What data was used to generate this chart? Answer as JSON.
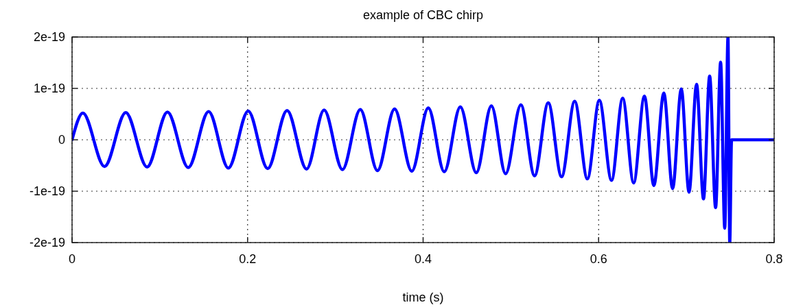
{
  "chart_data": {
    "type": "line",
    "title": "example of CBC chirp",
    "xlabel": "time (s)",
    "xlim": [
      0,
      0.8
    ],
    "xticks": [
      0,
      0.2,
      0.4,
      0.6,
      0.8
    ],
    "ylim": [
      -2e-19,
      2e-19
    ],
    "yticks": [
      {
        "value": -2e-19,
        "label": "-2e-19"
      },
      {
        "value": -1e-19,
        "label": "-1e-19"
      },
      {
        "value": 0,
        "label": "0"
      },
      {
        "value": 1e-19,
        "label": "1e-19"
      },
      {
        "value": 2e-19,
        "label": "2e-19"
      }
    ],
    "grid": true,
    "line_style": "solid",
    "series": [
      {
        "color": "#0000ff",
        "x": [
          0,
          0.0123,
          0.037,
          0.0612,
          0.0855,
          0.1087,
          0.1324,
          0.1556,
          0.1781,
          0.2007,
          0.2229,
          0.245,
          0.2672,
          0.2872,
          0.3081,
          0.3284,
          0.348,
          0.3675,
          0.3871,
          0.4059,
          0.4241,
          0.4424,
          0.4606,
          0.4778,
          0.494,
          0.5114,
          0.527,
          0.5426,
          0.5578,
          0.5727,
          0.5872,
          0.6008,
          0.6147,
          0.6274,
          0.6399,
          0.6522,
          0.6629,
          0.6743,
          0.6843,
          0.6942,
          0.703,
          0.7116,
          0.7195,
          0.7265,
          0.7333,
          0.739,
          0.7437,
          0.7474,
          0.7494,
          0.7515,
          0.8
        ],
        "values": [
          0,
          5.2e-20,
          -5.2e-20,
          5.3e-20,
          -5.3e-20,
          5.4e-20,
          -5.4e-20,
          5.5e-20,
          -5.5e-20,
          5.6e-20,
          -5.6e-20,
          5.7e-20,
          -5.7e-20,
          5.8e-20,
          -5.8e-20,
          5.9e-20,
          -6e-20,
          6e-20,
          -6.1e-20,
          6.2e-20,
          -6.2e-20,
          6.4e-20,
          -6.4e-20,
          6.6e-20,
          -6.6e-20,
          6.8e-20,
          -7e-20,
          7.2e-20,
          -7.2e-20,
          7.5e-20,
          -7.6e-20,
          7.7e-20,
          -7.9e-20,
          8.1e-20,
          -8.4e-20,
          8.5e-20,
          -8.9e-20,
          9.1e-20,
          -9.5e-20,
          9.9e-20,
          -1.02e-19,
          1.08e-19,
          -1.15e-19,
          1.24e-19,
          -1.32e-19,
          1.51e-19,
          -1.72e-19,
          2e-19,
          -2e-19,
          0,
          0
        ]
      }
    ]
  }
}
